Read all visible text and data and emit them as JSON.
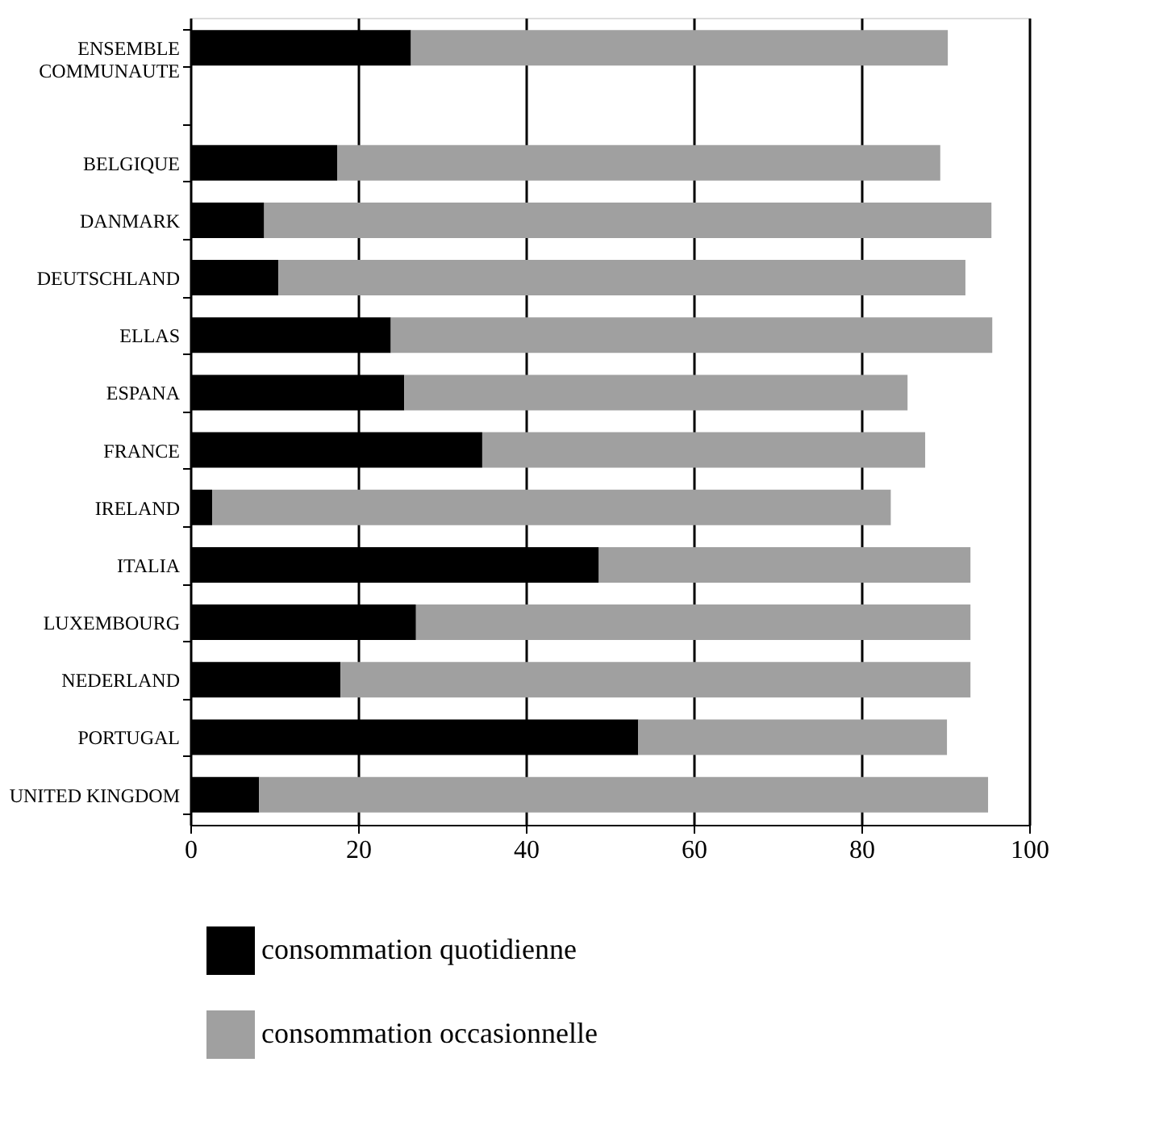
{
  "chart_data": {
    "type": "bar",
    "orientation": "horizontal",
    "stacked": true,
    "categories": [
      "ENSEMBLE\nCOMMUNAUTE",
      null,
      "BELGIQUE",
      "DANMARK",
      "DEUTSCHLAND",
      "ELLAS",
      "ESPANA",
      "FRANCE",
      "IRELAND",
      "ITALIA",
      "LUXEMBOURG",
      "NEDERLAND",
      "PORTUGAL",
      "UNITED KINGDOM"
    ],
    "series": [
      {
        "name": "consommation quotidienne",
        "color": "#000000",
        "values": [
          26.3,
          null,
          17.5,
          8.8,
          10.5,
          23.9,
          25.5,
          34.8,
          2.6,
          48.7,
          26.9,
          17.9,
          53.4,
          8.2
        ]
      },
      {
        "name": "consommation occasionnelle",
        "color": "#a0a0a0",
        "values": [
          64.0,
          null,
          71.9,
          86.7,
          81.9,
          71.7,
          60.0,
          52.8,
          80.9,
          44.3,
          66.1,
          75.1,
          36.8,
          86.9
        ]
      }
    ],
    "xlim": [
      0,
      100
    ],
    "xticks": [
      0,
      20,
      40,
      60,
      80,
      100
    ],
    "grid": "x",
    "legend": "bottom"
  }
}
